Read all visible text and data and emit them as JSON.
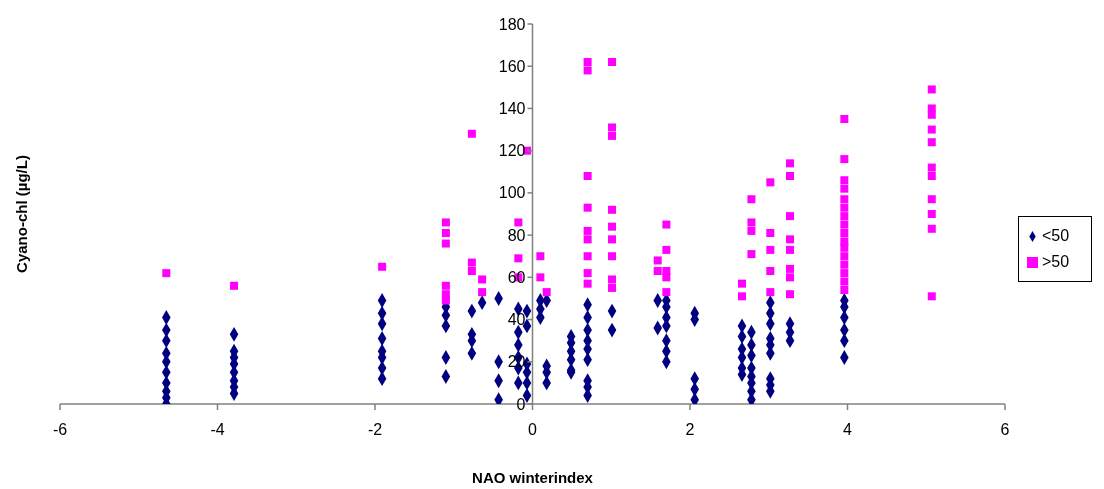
{
  "chart_data": {
    "type": "scatter",
    "xlabel": "NAO winterindex",
    "ylabel": "Cyano-chl (µg/L)",
    "xlim": [
      -6,
      6
    ],
    "xticks": [
      -6,
      -4,
      -2,
      0,
      2,
      4,
      6
    ],
    "ylim": [
      0,
      180
    ],
    "yticks": [
      0,
      20,
      40,
      60,
      80,
      100,
      120,
      140,
      160,
      180
    ],
    "grid": false,
    "legend": "right",
    "series": [
      {
        "name": "<50",
        "color": "#000080",
        "marker": "diamond",
        "x": [
          -4.65,
          -4.65,
          -4.65,
          -4.65,
          -4.65,
          -4.65,
          -4.65,
          -4.65,
          -4.65,
          -4.65,
          -3.79,
          -3.79,
          -3.79,
          -3.79,
          -3.79,
          -3.79,
          -3.79,
          -3.79,
          -1.91,
          -1.91,
          -1.91,
          -1.91,
          -1.91,
          -1.91,
          -1.91,
          -1.91,
          -1.1,
          -1.1,
          -1.1,
          -1.1,
          -1.1,
          -0.77,
          -0.77,
          -0.77,
          -0.77,
          -0.64,
          -0.43,
          -0.43,
          -0.43,
          -0.43,
          -0.18,
          -0.18,
          -0.18,
          -0.18,
          -0.18,
          -0.18,
          -0.07,
          -0.07,
          -0.07,
          -0.07,
          -0.07,
          -0.07,
          0.1,
          0.1,
          0.1,
          0.18,
          0.18,
          0.18,
          0.18,
          0.49,
          0.49,
          0.49,
          0.49,
          0.49,
          0.49,
          0.7,
          0.7,
          0.7,
          0.7,
          0.7,
          0.7,
          0.7,
          0.7,
          0.7,
          1.01,
          1.01,
          1.59,
          1.59,
          1.7,
          1.7,
          1.7,
          1.7,
          1.7,
          1.7,
          1.7,
          2.06,
          2.06,
          2.06,
          2.06,
          2.06,
          2.66,
          2.66,
          2.66,
          2.66,
          2.66,
          2.66,
          2.78,
          2.78,
          2.78,
          2.78,
          2.78,
          2.78,
          2.78,
          2.78,
          3.02,
          3.02,
          3.02,
          3.02,
          3.02,
          3.02,
          3.02,
          3.02,
          3.02,
          3.27,
          3.27,
          3.27,
          3.96,
          3.96,
          3.96,
          3.96,
          3.96,
          3.96
        ],
        "values": [
          41,
          35,
          30,
          24,
          20,
          15,
          10,
          6,
          3,
          0,
          33,
          25,
          22,
          19,
          15,
          11,
          8,
          5,
          49,
          43,
          38,
          31,
          25,
          22,
          17,
          12,
          46,
          42,
          37,
          22,
          13,
          44,
          33,
          30,
          24,
          48,
          50,
          20,
          11,
          2,
          45,
          34,
          28,
          22,
          17,
          10,
          44,
          37,
          19,
          15,
          10,
          4,
          49,
          45,
          41,
          49,
          18,
          15,
          10,
          32,
          29,
          25,
          21,
          16,
          15,
          47,
          41,
          35,
          30,
          26,
          21,
          11,
          8,
          4,
          44,
          35,
          49,
          36,
          49,
          46,
          41,
          37,
          30,
          25,
          20,
          43,
          40,
          12,
          7,
          2,
          37,
          32,
          26,
          22,
          17,
          14,
          34,
          28,
          23,
          17,
          13,
          10,
          6,
          2,
          48,
          43,
          38,
          31,
          28,
          24,
          12,
          9,
          6,
          38,
          34,
          30,
          49,
          46,
          41,
          35,
          30,
          22
        ]
      },
      {
        "name": ">50",
        "color": "#ff00ff",
        "marker": "square",
        "x": [
          -4.65,
          -3.79,
          -1.91,
          -1.1,
          -1.1,
          -1.1,
          -1.1,
          -1.1,
          -1.1,
          -0.77,
          -0.77,
          -0.77,
          -0.64,
          -0.64,
          -0.18,
          -0.18,
          -0.18,
          -0.07,
          0.1,
          0.1,
          0.18,
          0.7,
          0.7,
          0.7,
          0.7,
          0.7,
          0.7,
          0.7,
          0.7,
          0.7,
          1.01,
          1.01,
          1.01,
          1.01,
          1.01,
          1.01,
          1.01,
          1.01,
          1.01,
          1.59,
          1.59,
          1.7,
          1.7,
          1.7,
          1.7,
          1.7,
          2.66,
          2.66,
          2.78,
          2.78,
          2.78,
          2.78,
          3.02,
          3.02,
          3.02,
          3.02,
          3.02,
          3.27,
          3.27,
          3.27,
          3.27,
          3.27,
          3.27,
          3.27,
          3.27,
          3.96,
          3.96,
          3.96,
          3.96,
          3.96,
          3.96,
          3.96,
          3.96,
          3.96,
          3.96,
          3.96,
          3.96,
          3.96,
          3.96,
          3.96,
          3.96,
          5.07,
          5.07,
          5.07,
          5.07,
          5.07,
          5.07,
          5.07,
          5.07,
          5.07,
          5.07,
          5.07
        ],
        "values": [
          62,
          56,
          65,
          86,
          81,
          76,
          56,
          52,
          49,
          128,
          67,
          63,
          59,
          53,
          86,
          69,
          60,
          120,
          70,
          60,
          53,
          162,
          158,
          108,
          93,
          82,
          78,
          70,
          62,
          57,
          162,
          131,
          127,
          92,
          84,
          78,
          70,
          59,
          55,
          68,
          63,
          85,
          73,
          63,
          60,
          53,
          57,
          51,
          97,
          86,
          82,
          71,
          105,
          81,
          73,
          63,
          53,
          114,
          108,
          89,
          78,
          73,
          64,
          60,
          52,
          135,
          116,
          106,
          102,
          97,
          93,
          89,
          85,
          81,
          77,
          74,
          70,
          66,
          62,
          58,
          54,
          149,
          140,
          137,
          130,
          124,
          112,
          108,
          97,
          90,
          83,
          51
        ]
      }
    ]
  }
}
